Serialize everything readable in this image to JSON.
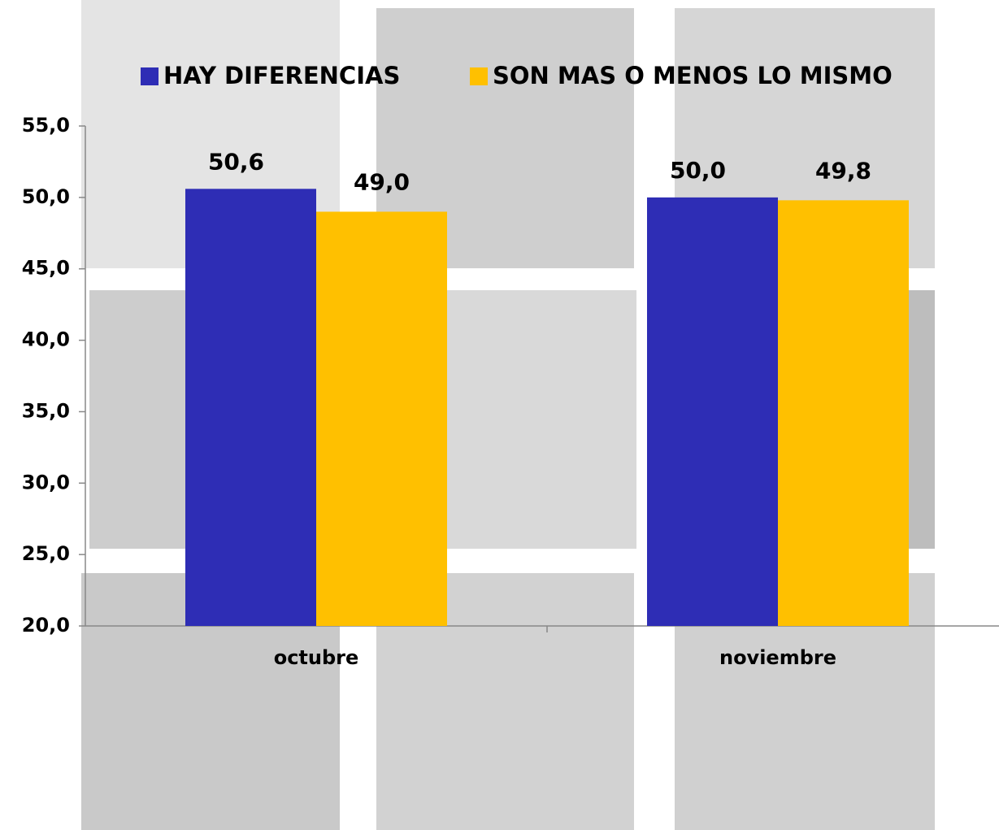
{
  "chart_data": {
    "type": "bar",
    "categories": [
      "octubre",
      "noviembre"
    ],
    "series": [
      {
        "name": "HAY DIFERENCIAS",
        "color": "#2e2db5",
        "values": [
          50.6,
          50.0
        ],
        "value_labels": [
          "50,6",
          "50,0"
        ]
      },
      {
        "name": "SON MAS O MENOS LO MISMO",
        "color": "#ffc000",
        "values": [
          49.0,
          49.8
        ],
        "value_labels": [
          "49,0",
          "49,8"
        ]
      }
    ],
    "ylim": [
      20,
      55
    ],
    "yticks": [
      {
        "value": 20,
        "label": "20,0"
      },
      {
        "value": 25,
        "label": "25,0"
      },
      {
        "value": 30,
        "label": "30,0"
      },
      {
        "value": 35,
        "label": "35,0"
      },
      {
        "value": 40,
        "label": "40,0"
      },
      {
        "value": 45,
        "label": "45,0"
      },
      {
        "value": 50,
        "label": "50,0"
      },
      {
        "value": 55,
        "label": "55,0"
      }
    ],
    "legend": "top"
  }
}
